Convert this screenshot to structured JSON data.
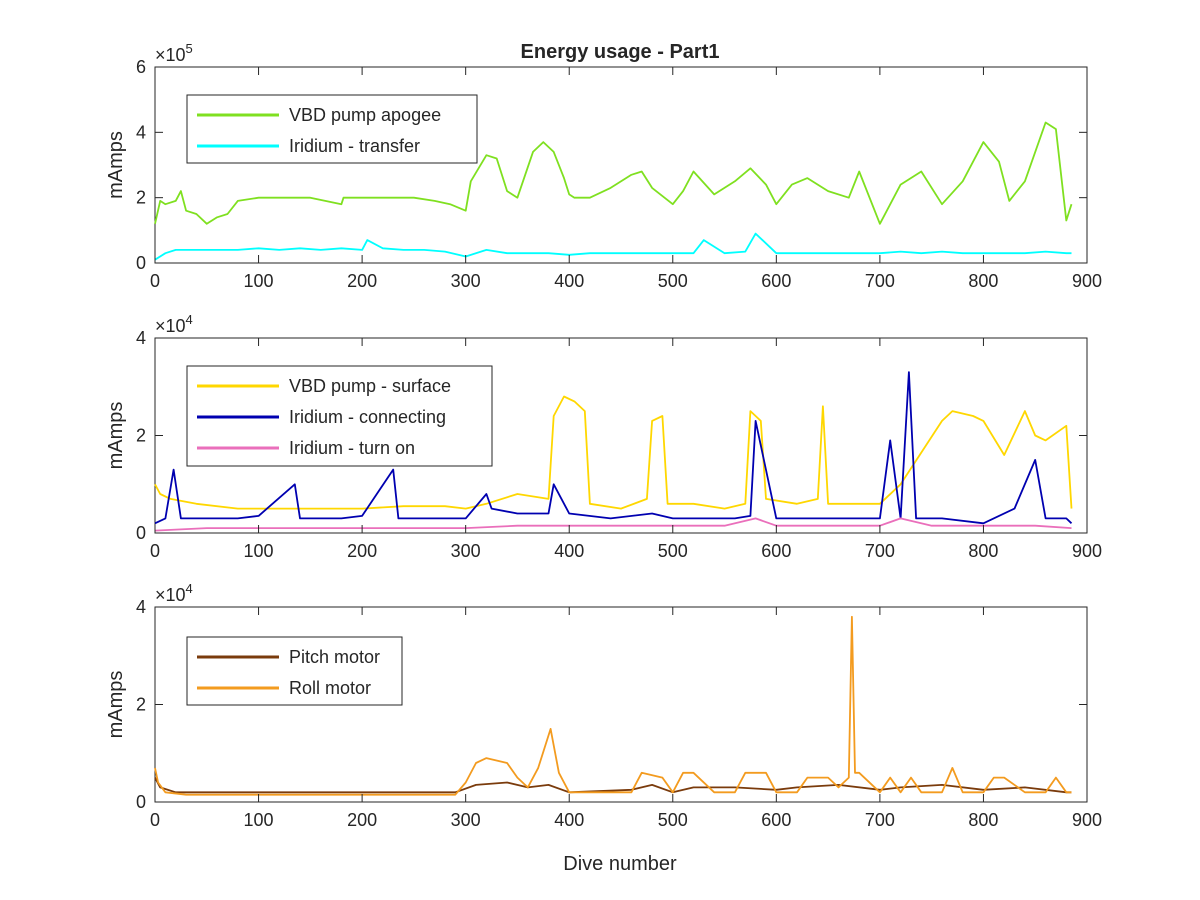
{
  "figure": {
    "title": "Energy usage - Part1",
    "xlabel": "Dive number"
  },
  "chart_data": [
    {
      "type": "line",
      "title": "Energy usage - Part1",
      "xlabel": "",
      "ylabel": "mAmps",
      "exponent_label": "×10",
      "exponent": "5",
      "xlim": [
        0,
        900
      ],
      "ylim": [
        0,
        6
      ],
      "xticks": [
        "0",
        "100",
        "200",
        "300",
        "400",
        "500",
        "600",
        "700",
        "800",
        "900"
      ],
      "yticks": [
        "0",
        "2",
        "4",
        "6"
      ],
      "grid": false,
      "legend_position": "top-left",
      "series": [
        {
          "name": "VBD pump apogee",
          "color": "#7fe020",
          "x": [
            0,
            5,
            10,
            20,
            25,
            30,
            40,
            50,
            60,
            70,
            80,
            100,
            150,
            180,
            182,
            200,
            250,
            270,
            285,
            300,
            305,
            320,
            330,
            340,
            350,
            365,
            375,
            385,
            395,
            400,
            405,
            420,
            440,
            460,
            470,
            480,
            500,
            510,
            520,
            540,
            560,
            575,
            590,
            600,
            615,
            630,
            650,
            670,
            680,
            700,
            720,
            740,
            760,
            780,
            800,
            815,
            825,
            840,
            860,
            870,
            880,
            885
          ],
          "y": [
            1.2,
            1.9,
            1.8,
            1.9,
            2.2,
            1.6,
            1.5,
            1.2,
            1.4,
            1.5,
            1.9,
            2.0,
            2.0,
            1.8,
            2.0,
            2.0,
            2.0,
            1.9,
            1.8,
            1.6,
            2.5,
            3.3,
            3.2,
            2.2,
            2.0,
            3.4,
            3.7,
            3.4,
            2.6,
            2.1,
            2.0,
            2.0,
            2.3,
            2.7,
            2.8,
            2.3,
            1.8,
            2.2,
            2.8,
            2.1,
            2.5,
            2.9,
            2.4,
            1.8,
            2.4,
            2.6,
            2.2,
            2.0,
            2.8,
            1.2,
            2.4,
            2.8,
            1.8,
            2.5,
            3.7,
            3.1,
            1.9,
            2.5,
            4.3,
            4.1,
            1.3,
            1.8
          ]
        },
        {
          "name": "Iridium - transfer",
          "color": "#00ffff",
          "x": [
            0,
            10,
            20,
            40,
            60,
            80,
            100,
            120,
            140,
            160,
            180,
            200,
            205,
            220,
            240,
            260,
            280,
            300,
            320,
            340,
            360,
            380,
            400,
            420,
            440,
            460,
            480,
            500,
            520,
            530,
            550,
            570,
            580,
            600,
            620,
            640,
            660,
            680,
            700,
            720,
            740,
            760,
            780,
            800,
            820,
            840,
            860,
            880,
            885
          ],
          "y": [
            0.1,
            0.3,
            0.4,
            0.4,
            0.4,
            0.4,
            0.45,
            0.4,
            0.45,
            0.4,
            0.45,
            0.4,
            0.7,
            0.45,
            0.4,
            0.4,
            0.35,
            0.2,
            0.4,
            0.3,
            0.3,
            0.3,
            0.25,
            0.3,
            0.3,
            0.3,
            0.3,
            0.3,
            0.3,
            0.7,
            0.3,
            0.35,
            0.9,
            0.3,
            0.3,
            0.3,
            0.3,
            0.3,
            0.3,
            0.35,
            0.3,
            0.35,
            0.3,
            0.3,
            0.3,
            0.3,
            0.35,
            0.3,
            0.3
          ]
        }
      ]
    },
    {
      "type": "line",
      "title": "",
      "xlabel": "",
      "ylabel": "mAmps",
      "exponent_label": "×10",
      "exponent": "4",
      "xlim": [
        0,
        900
      ],
      "ylim": [
        0,
        4
      ],
      "xticks": [
        "0",
        "100",
        "200",
        "300",
        "400",
        "500",
        "600",
        "700",
        "800",
        "900"
      ],
      "yticks": [
        "0",
        "2",
        "4"
      ],
      "grid": false,
      "legend_position": "top-left",
      "series": [
        {
          "name": "VBD pump - surface",
          "color": "#ffd700",
          "x": [
            0,
            5,
            15,
            40,
            80,
            120,
            160,
            200,
            240,
            280,
            300,
            320,
            350,
            380,
            385,
            395,
            405,
            415,
            420,
            450,
            475,
            480,
            490,
            495,
            520,
            550,
            570,
            575,
            585,
            590,
            620,
            640,
            645,
            650,
            700,
            720,
            760,
            770,
            790,
            800,
            820,
            840,
            850,
            860,
            880,
            885
          ],
          "y": [
            1.0,
            0.8,
            0.7,
            0.6,
            0.5,
            0.5,
            0.5,
            0.5,
            0.55,
            0.55,
            0.5,
            0.6,
            0.8,
            0.7,
            2.4,
            2.8,
            2.7,
            2.5,
            0.6,
            0.5,
            0.7,
            2.3,
            2.4,
            0.6,
            0.6,
            0.5,
            0.6,
            2.5,
            2.3,
            0.7,
            0.6,
            0.7,
            2.6,
            0.6,
            0.6,
            1.0,
            2.3,
            2.5,
            2.4,
            2.3,
            1.6,
            2.5,
            2.0,
            1.9,
            2.2,
            0.5
          ]
        },
        {
          "name": "Iridium - connecting",
          "color": "#0000b0",
          "x": [
            0,
            10,
            18,
            25,
            50,
            80,
            100,
            135,
            140,
            180,
            200,
            230,
            235,
            280,
            300,
            320,
            325,
            350,
            380,
            385,
            400,
            440,
            480,
            500,
            530,
            560,
            575,
            580,
            600,
            640,
            680,
            700,
            710,
            720,
            728,
            735,
            760,
            800,
            830,
            850,
            860,
            880,
            885
          ],
          "y": [
            0.2,
            0.3,
            1.3,
            0.3,
            0.3,
            0.3,
            0.35,
            1.0,
            0.3,
            0.3,
            0.35,
            1.3,
            0.3,
            0.3,
            0.3,
            0.8,
            0.5,
            0.4,
            0.4,
            1.0,
            0.4,
            0.3,
            0.4,
            0.3,
            0.3,
            0.3,
            0.35,
            2.3,
            0.3,
            0.3,
            0.3,
            0.3,
            1.9,
            0.3,
            3.3,
            0.3,
            0.3,
            0.2,
            0.5,
            1.5,
            0.3,
            0.3,
            0.2
          ]
        },
        {
          "name": "Iridium - turn on",
          "color": "#ea6fbb",
          "x": [
            0,
            50,
            100,
            150,
            200,
            250,
            300,
            350,
            400,
            450,
            500,
            550,
            580,
            600,
            650,
            700,
            720,
            750,
            800,
            850,
            885
          ],
          "y": [
            0.05,
            0.1,
            0.1,
            0.1,
            0.1,
            0.1,
            0.1,
            0.15,
            0.15,
            0.15,
            0.15,
            0.15,
            0.3,
            0.15,
            0.15,
            0.15,
            0.3,
            0.15,
            0.15,
            0.15,
            0.1
          ]
        }
      ]
    },
    {
      "type": "line",
      "title": "",
      "xlabel": "Dive number",
      "ylabel": "mAmps",
      "exponent_label": "×10",
      "exponent": "4",
      "xlim": [
        0,
        900
      ],
      "ylim": [
        0,
        4
      ],
      "xticks": [
        "0",
        "100",
        "200",
        "300",
        "400",
        "500",
        "600",
        "700",
        "800",
        "900"
      ],
      "yticks": [
        "0",
        "2",
        "4"
      ],
      "grid": false,
      "legend_position": "top-left",
      "series": [
        {
          "name": "Pitch motor",
          "color": "#7a3b0c",
          "x": [
            0,
            5,
            20,
            100,
            200,
            290,
            310,
            340,
            360,
            380,
            400,
            460,
            480,
            500,
            520,
            560,
            600,
            620,
            660,
            700,
            720,
            760,
            800,
            840,
            880,
            885
          ],
          "y": [
            0.5,
            0.3,
            0.2,
            0.2,
            0.2,
            0.2,
            0.35,
            0.4,
            0.3,
            0.35,
            0.2,
            0.25,
            0.35,
            0.2,
            0.3,
            0.3,
            0.25,
            0.3,
            0.35,
            0.25,
            0.3,
            0.35,
            0.25,
            0.3,
            0.2,
            0.2
          ]
        },
        {
          "name": "Roll motor",
          "color": "#f39b1f",
          "x": [
            0,
            3,
            10,
            30,
            100,
            200,
            290,
            300,
            310,
            320,
            340,
            350,
            360,
            370,
            382,
            390,
            400,
            420,
            460,
            470,
            490,
            500,
            510,
            520,
            540,
            560,
            570,
            590,
            600,
            620,
            630,
            650,
            660,
            670,
            673,
            676,
            680,
            700,
            710,
            720,
            730,
            740,
            760,
            770,
            780,
            800,
            810,
            820,
            840,
            860,
            870,
            880,
            885
          ],
          "y": [
            0.7,
            0.4,
            0.2,
            0.15,
            0.15,
            0.15,
            0.15,
            0.4,
            0.8,
            0.9,
            0.8,
            0.5,
            0.3,
            0.7,
            1.5,
            0.6,
            0.2,
            0.2,
            0.2,
            0.6,
            0.5,
            0.2,
            0.6,
            0.6,
            0.2,
            0.2,
            0.6,
            0.6,
            0.2,
            0.2,
            0.5,
            0.5,
            0.3,
            0.5,
            3.8,
            0.6,
            0.6,
            0.2,
            0.5,
            0.2,
            0.5,
            0.2,
            0.2,
            0.7,
            0.2,
            0.2,
            0.5,
            0.5,
            0.2,
            0.2,
            0.5,
            0.2,
            0.2
          ]
        }
      ]
    }
  ]
}
